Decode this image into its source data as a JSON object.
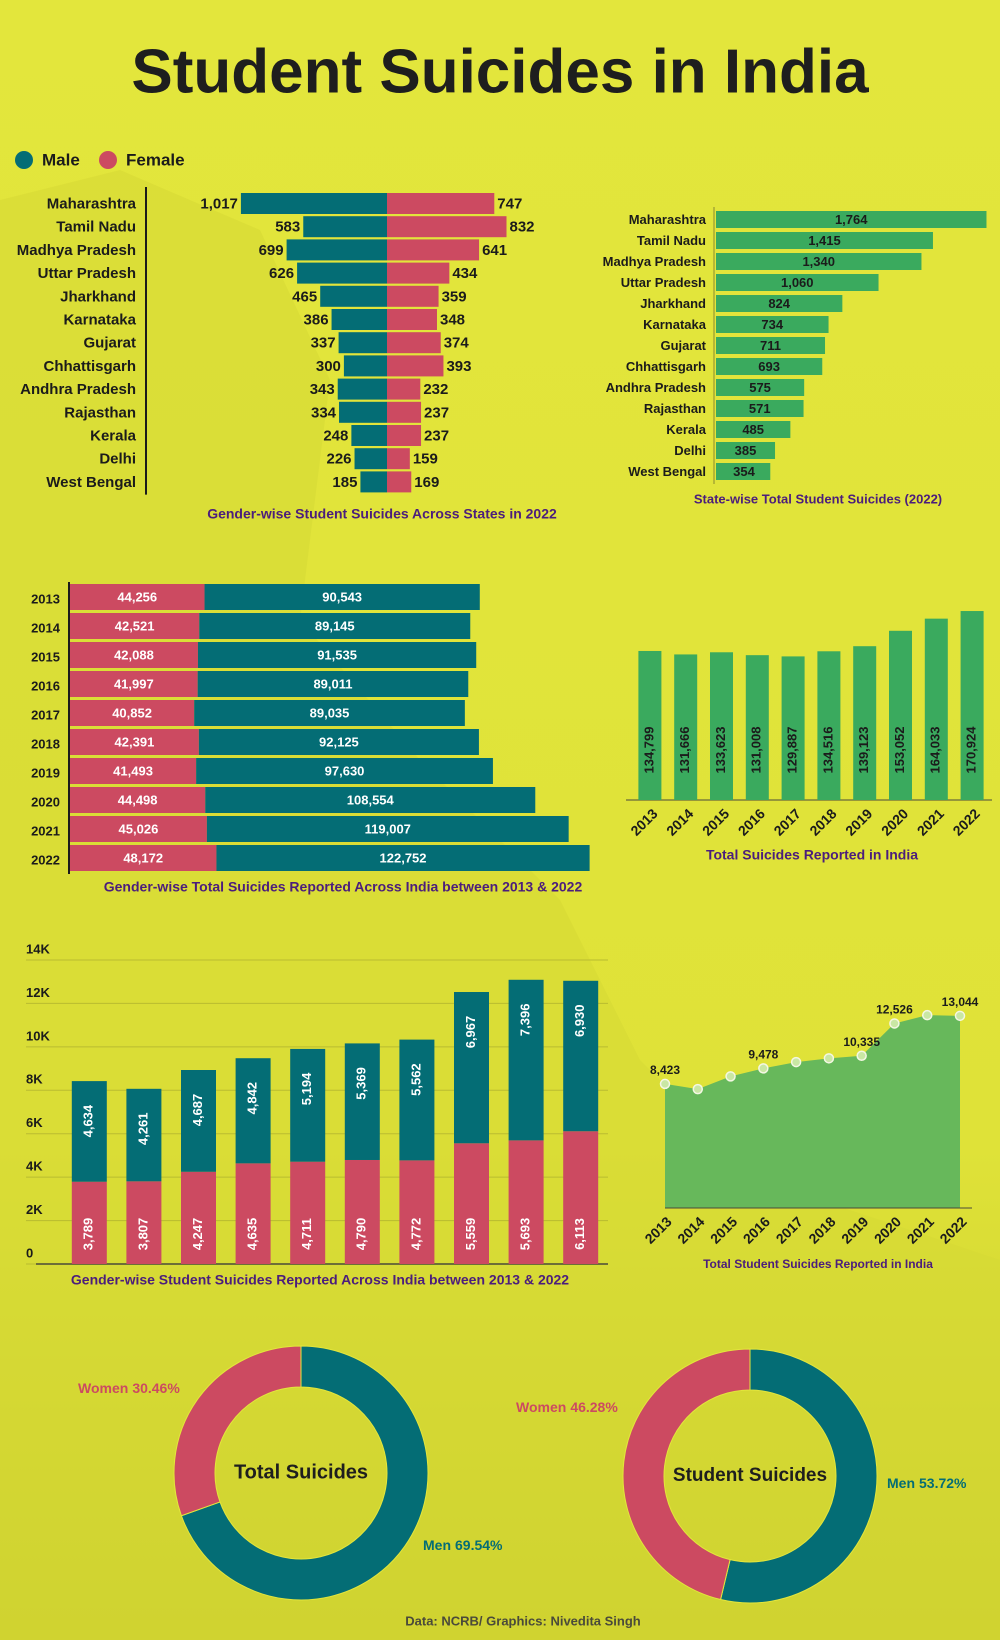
{
  "title": "Student Suicides in India",
  "source": "Data: NCRB/ Graphics: Nivedita Singh",
  "chart_data": [
    {
      "type": "butterfly",
      "title": "Gender-wise Student Suicides Across States in 2022",
      "categories": [
        "Maharashtra",
        "Tamil Nadu",
        "Madhya Pradesh",
        "Uttar Pradesh",
        "Jharkhand",
        "Karnataka",
        "Gujarat",
        "Chhattisgarh",
        "Andhra Pradesh",
        "Rajasthan",
        "Kerala",
        "Delhi",
        "West Bengal"
      ],
      "series": [
        {
          "name": "Male",
          "color": "#046d75",
          "values": [
            1017,
            583,
            699,
            626,
            465,
            386,
            337,
            300,
            343,
            334,
            248,
            226,
            185
          ],
          "value_labels": [
            "1,017",
            "583",
            "699",
            "626",
            "465",
            "386",
            "337",
            "300",
            "343",
            "334",
            "248",
            "226",
            "185"
          ]
        },
        {
          "name": "Female",
          "color": "#cc4a61",
          "values": [
            747,
            832,
            641,
            434,
            359,
            348,
            374,
            393,
            232,
            237,
            237,
            159,
            169
          ]
        }
      ],
      "xlim": [
        0,
        1100
      ],
      "legend": "top-left"
    },
    {
      "type": "hbar",
      "title": "State-wise Total Student Suicides (2022)",
      "categories": [
        "Maharashtra",
        "Tamil Nadu",
        "Madhya Pradesh",
        "Uttar Pradesh",
        "Jharkhand",
        "Karnataka",
        "Gujarat",
        "Chhattisgarh",
        "Andhra Pradesh",
        "Rajasthan",
        "Kerala",
        "Delhi",
        "West Bengal"
      ],
      "values": [
        1764,
        1415,
        1340,
        1060,
        824,
        734,
        711,
        693,
        575,
        571,
        485,
        385,
        354
      ],
      "value_labels": [
        "1,764",
        "1,415",
        "1,340",
        "1,060",
        "824",
        "734",
        "711",
        "693",
        "575",
        "571",
        "485",
        "385",
        "354"
      ],
      "color": "#3aaa5e",
      "xlim": [
        0,
        1800
      ]
    },
    {
      "type": "hstacked",
      "title": "Gender-wise Total Suicides Reported Across India between 2013 & 2022",
      "categories": [
        "2013",
        "2014",
        "2015",
        "2016",
        "2017",
        "2018",
        "2019",
        "2020",
        "2021",
        "2022"
      ],
      "series": [
        {
          "color": "#cc4a61",
          "values": [
            44256,
            42521,
            42088,
            41997,
            40852,
            42391,
            41493,
            44498,
            45026,
            48172
          ],
          "value_labels": [
            "44,256",
            "42,521",
            "42,088",
            "41,997",
            "40,852",
            "42,391",
            "41,493",
            "44,498",
            "45,026",
            "48,172"
          ]
        },
        {
          "color": "#046d75",
          "values": [
            90543,
            89145,
            91535,
            89011,
            89035,
            92125,
            97630,
            108554,
            119007,
            122752
          ],
          "value_labels": [
            "90,543",
            "89,145",
            "91,535",
            "89,011",
            "89,035",
            "92,125",
            "97,630",
            "108,554",
            "119,007",
            "122,752"
          ]
        }
      ],
      "xlim": [
        0,
        175000
      ]
    },
    {
      "type": "bar",
      "title": "Total Suicides Reported in India",
      "categories": [
        "2013",
        "2014",
        "2015",
        "2016",
        "2017",
        "2018",
        "2019",
        "2020",
        "2021",
        "2022"
      ],
      "values": [
        134799,
        131666,
        133623,
        131008,
        129887,
        134516,
        139123,
        153052,
        164033,
        170924
      ],
      "value_labels": [
        "134,799",
        "131,666",
        "133,623",
        "131,008",
        "129,887",
        "134,516",
        "139,123",
        "153,052",
        "164,033",
        "170,924"
      ],
      "color": "#3aaa5e",
      "ylim": [
        0,
        180000
      ]
    },
    {
      "type": "stacked",
      "title": "Gender-wise Student Suicides Reported Across India between 2013 & 2022",
      "categories": [
        "2013",
        "2014",
        "2015",
        "2016",
        "2017",
        "2018",
        "2019",
        "2020",
        "2021",
        "2022"
      ],
      "series": [
        {
          "color": "#cc4a61",
          "values": [
            3789,
            3807,
            4247,
            4635,
            4711,
            4790,
            4772,
            5559,
            5693,
            6113
          ],
          "value_labels": [
            "3,789",
            "3,807",
            "4,247",
            "4,635",
            "4,711",
            "4,790",
            "4,772",
            "5,559",
            "5,693",
            "6,113"
          ]
        },
        {
          "color": "#046d75",
          "values": [
            4634,
            4261,
            4687,
            4842,
            5194,
            5369,
            5562,
            6967,
            7396,
            6930
          ],
          "value_labels": [
            "4,634",
            "4,261",
            "4,687",
            "4,842",
            "5,194",
            "5,369",
            "5,562",
            "6,967",
            "7,396",
            "6,930"
          ]
        }
      ],
      "ylim": [
        0,
        14000
      ],
      "yticks": [
        0,
        {
          "value": 2000,
          "label": "2K"
        },
        {
          "value": 4000,
          "label": "4K"
        },
        {
          "value": 6000,
          "label": "6K"
        },
        {
          "value": 8000,
          "label": "8K"
        },
        {
          "value": 10000,
          "label": "10K"
        },
        {
          "value": 12000,
          "label": "12K"
        },
        {
          "value": 14000,
          "label": "14K"
        }
      ],
      "grid": true
    },
    {
      "type": "area",
      "title": "Total Student Suicides Reported in India",
      "categories": [
        "2013",
        "2014",
        "2015",
        "2016",
        "2017",
        "2018",
        "2019",
        "2020",
        "2021",
        "2022"
      ],
      "values": [
        8423,
        8068,
        8934,
        9478,
        9905,
        10159,
        10335,
        12526,
        13089,
        13044
      ],
      "value_labels": [
        "8,423",
        null,
        null,
        "9,478",
        null,
        null,
        "10,335",
        "12,526",
        null,
        "13,044"
      ],
      "color": "#67b85b",
      "ylim": [
        0,
        15000
      ]
    },
    {
      "type": "donut",
      "title": "Total Suicides",
      "categories": [
        "Men",
        "Women"
      ],
      "values": [
        69.54,
        30.46
      ],
      "value_labels": [
        "69.54%",
        "30.46%"
      ],
      "colors": [
        "#046d75",
        "#cc4a61"
      ]
    },
    {
      "type": "donut",
      "title": "Student Suicides",
      "categories": [
        "Men",
        "Women"
      ],
      "values": [
        53.72,
        46.28
      ],
      "value_labels": [
        "53.72%",
        "46.28%"
      ],
      "colors": [
        "#046d75",
        "#cc4a61"
      ]
    }
  ]
}
